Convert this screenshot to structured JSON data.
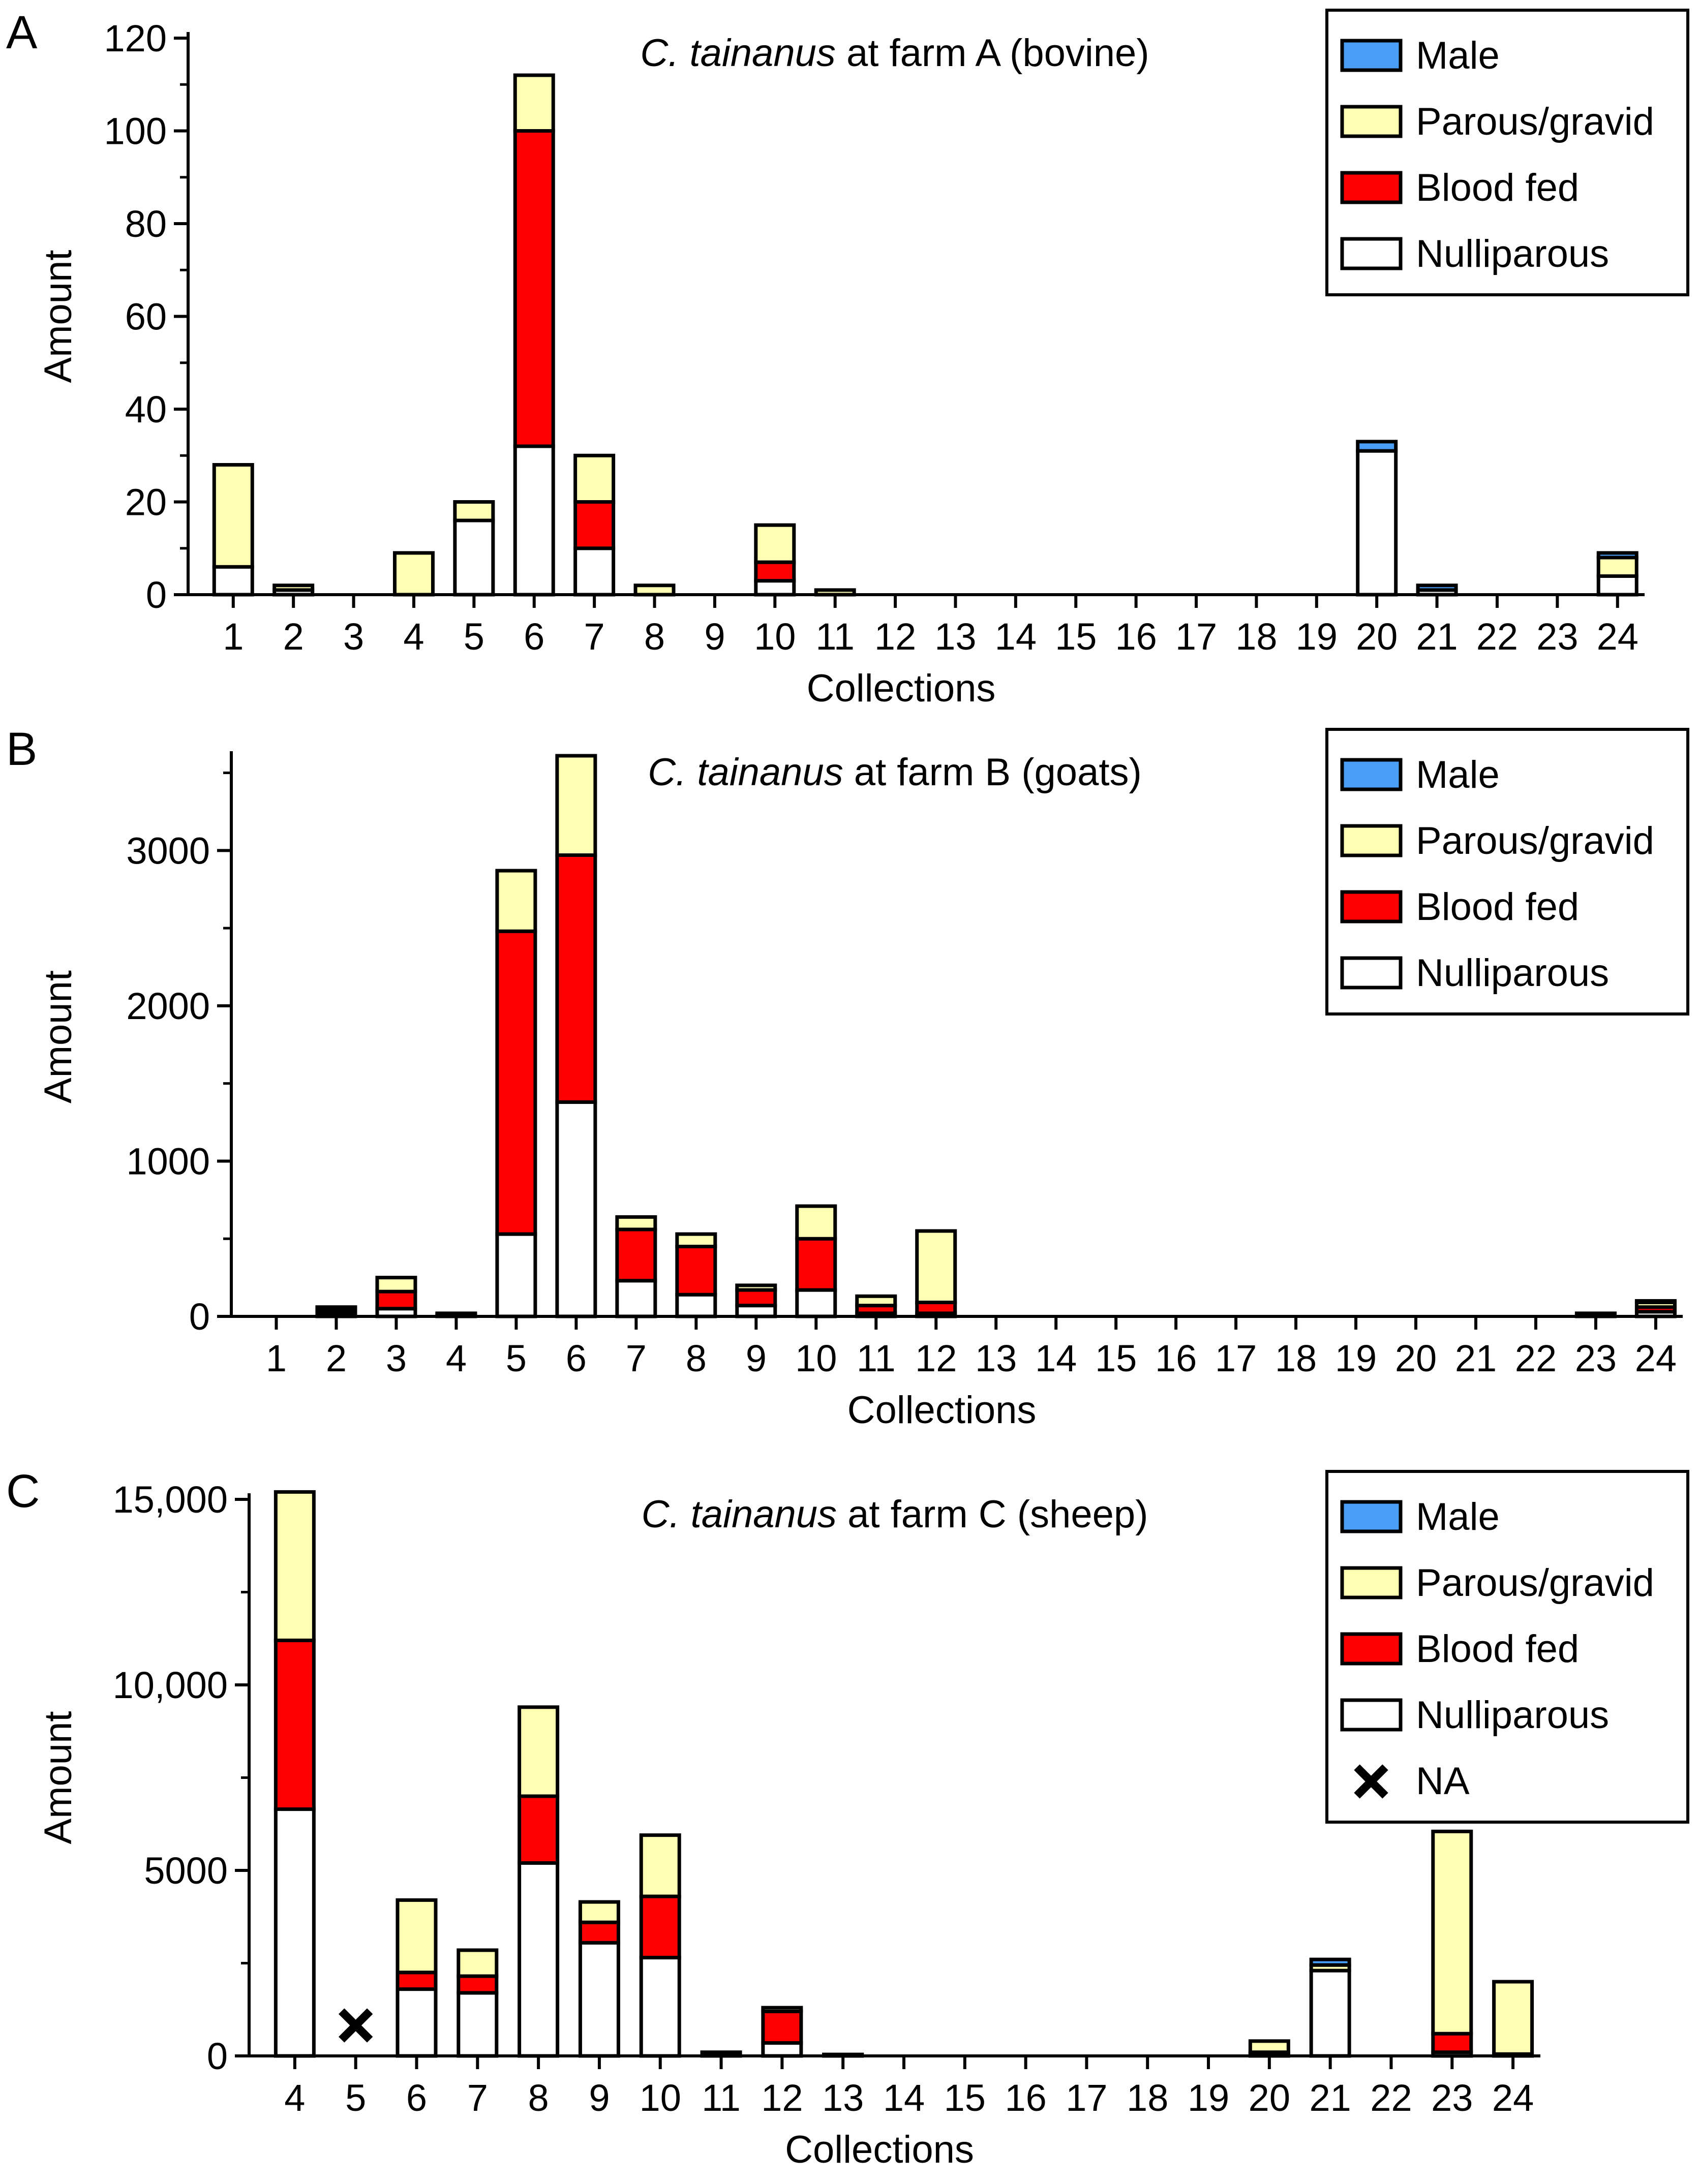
{
  "colors": {
    "male": "#4a9ef5",
    "parous": "#ffffb3",
    "blood": "#ff0000",
    "nulli": "#ffffff",
    "stroke": "#000000"
  },
  "legend": {
    "male": "Male",
    "parous": "Parous/gravid",
    "blood": "Blood fed",
    "nulli": "Nulliparous",
    "na": "NA"
  },
  "chart_data": [
    {
      "type": "bar",
      "stacked": true,
      "panel_label": "A",
      "title_italic": "C. tainanus",
      "title_rest": " at farm A (bovine)",
      "xlabel": "Collections",
      "ylabel": "Amount",
      "ylim": [
        0,
        120
      ],
      "yticks": [
        "0",
        "20",
        "40",
        "60",
        "80",
        "100",
        "120"
      ],
      "categories": [
        "1",
        "2",
        "3",
        "4",
        "5",
        "6",
        "7",
        "8",
        "9",
        "10",
        "11",
        "12",
        "13",
        "14",
        "15",
        "16",
        "17",
        "18",
        "19",
        "20",
        "21",
        "22",
        "23",
        "24"
      ],
      "legend_position": "top-right",
      "series": [
        {
          "key": "nulli",
          "name": "Nulliparous",
          "values": [
            6,
            1,
            0,
            0,
            16,
            32,
            10,
            0,
            0,
            3,
            0,
            0,
            0,
            0,
            0,
            0,
            0,
            0,
            0,
            31,
            1,
            0,
            0,
            4
          ]
        },
        {
          "key": "blood",
          "name": "Blood fed",
          "values": [
            0,
            0,
            0,
            0,
            0,
            68,
            10,
            0,
            0,
            4,
            0,
            0,
            0,
            0,
            0,
            0,
            0,
            0,
            0,
            0,
            0,
            0,
            0,
            0
          ]
        },
        {
          "key": "parous",
          "name": "Parous/gravid",
          "values": [
            22,
            1,
            0,
            9,
            4,
            12,
            10,
            2,
            0,
            8,
            1,
            0,
            0,
            0,
            0,
            0,
            0,
            0,
            0,
            0,
            0,
            0,
            0,
            4
          ]
        },
        {
          "key": "male",
          "name": "Male",
          "values": [
            0,
            0,
            0,
            0,
            0,
            0,
            0,
            0,
            0,
            0,
            0,
            0,
            0,
            0,
            0,
            0,
            0,
            0,
            0,
            2,
            1,
            0,
            0,
            1
          ]
        }
      ]
    },
    {
      "type": "bar",
      "stacked": true,
      "panel_label": "B",
      "title_italic": "C. tainanus",
      "title_rest": " at farm B (goats)",
      "xlabel": "Collections",
      "ylabel": "Amount",
      "ylim": [
        0,
        3600
      ],
      "yticks": [
        "0",
        "1000",
        "2000",
        "3000"
      ],
      "categories": [
        "1",
        "2",
        "3",
        "4",
        "5",
        "6",
        "7",
        "8",
        "9",
        "10",
        "11",
        "12",
        "13",
        "14",
        "15",
        "16",
        "17",
        "18",
        "19",
        "20",
        "21",
        "22",
        "23",
        "24"
      ],
      "legend_position": "top-right",
      "series": [
        {
          "key": "nulli",
          "name": "Nulliparous",
          "values": [
            0,
            20,
            50,
            10,
            530,
            1380,
            230,
            140,
            70,
            170,
            20,
            20,
            0,
            0,
            0,
            0,
            0,
            0,
            0,
            0,
            0,
            0,
            5,
            30
          ]
        },
        {
          "key": "blood",
          "name": "Blood fed",
          "values": [
            0,
            20,
            110,
            5,
            1950,
            1590,
            330,
            310,
            100,
            330,
            50,
            70,
            0,
            0,
            0,
            0,
            0,
            0,
            0,
            0,
            0,
            0,
            5,
            30
          ]
        },
        {
          "key": "parous",
          "name": "Parous/gravid",
          "values": [
            0,
            10,
            90,
            5,
            390,
            640,
            80,
            80,
            30,
            210,
            60,
            460,
            0,
            0,
            0,
            0,
            0,
            0,
            0,
            0,
            0,
            0,
            5,
            30
          ]
        },
        {
          "key": "male",
          "name": "Male",
          "values": [
            0,
            10,
            0,
            0,
            0,
            0,
            0,
            0,
            0,
            0,
            0,
            0,
            0,
            0,
            0,
            0,
            0,
            0,
            0,
            0,
            0,
            0,
            5,
            10
          ]
        }
      ]
    },
    {
      "type": "bar",
      "stacked": true,
      "panel_label": "C",
      "title_italic": "C. tainanus",
      "title_rest": " at farm C (sheep)",
      "xlabel": "Collections",
      "ylabel": "Amount",
      "ylim": [
        0,
        15000
      ],
      "yticks": [
        "0",
        "5000",
        "10,000",
        "15,000"
      ],
      "categories": [
        "4",
        "5",
        "6",
        "7",
        "8",
        "9",
        "10",
        "11",
        "12",
        "13",
        "14",
        "15",
        "16",
        "17",
        "18",
        "19",
        "20",
        "21",
        "22",
        "23",
        "24"
      ],
      "legend_position": "top-right",
      "na_category": "5",
      "series": [
        {
          "key": "nulli",
          "name": "Nulliparous",
          "values": [
            6650,
            0,
            1800,
            1700,
            5200,
            3050,
            2650,
            50,
            350,
            20,
            0,
            0,
            0,
            0,
            0,
            0,
            50,
            2300,
            0,
            100,
            50
          ]
        },
        {
          "key": "blood",
          "name": "Blood fed",
          "values": [
            4550,
            0,
            450,
            450,
            1800,
            550,
            1650,
            20,
            850,
            10,
            0,
            0,
            0,
            0,
            0,
            0,
            50,
            0,
            0,
            500,
            0
          ]
        },
        {
          "key": "parous",
          "name": "Parous/gravid",
          "values": [
            4000,
            0,
            1950,
            700,
            2400,
            550,
            1650,
            30,
            100,
            10,
            0,
            0,
            0,
            0,
            0,
            0,
            300,
            150,
            0,
            5450,
            1950
          ]
        },
        {
          "key": "male",
          "name": "Male",
          "values": [
            0,
            0,
            0,
            0,
            0,
            0,
            0,
            0,
            0,
            0,
            0,
            0,
            0,
            0,
            0,
            0,
            0,
            150,
            0,
            0,
            0
          ]
        }
      ]
    }
  ]
}
